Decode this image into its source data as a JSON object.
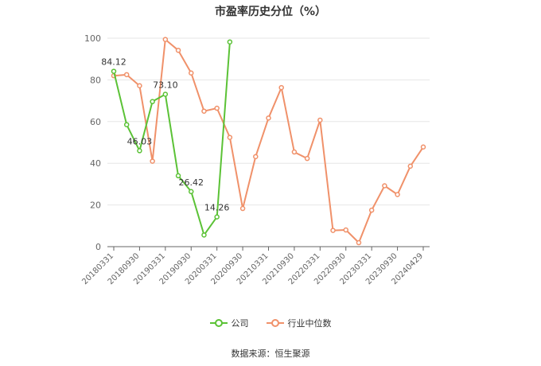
{
  "chart_data": {
    "type": "line",
    "title": "市盈率历史分位（%）",
    "x_tick_labels": [
      "20180331",
      "20180930",
      "20190331",
      "20190930",
      "20200331",
      "20200930",
      "20210331",
      "20210930",
      "20220331",
      "20220930",
      "20230331",
      "20230930",
      "20240429"
    ],
    "ylim": [
      0,
      100
    ],
    "y_ticks": [
      0,
      20,
      40,
      60,
      80,
      100
    ],
    "grid": true,
    "legend_position": "bottom",
    "series": [
      {
        "name": "公司",
        "color": "#5bc236",
        "values": [
          84.12,
          58.5,
          46.03,
          69.6,
          73.1,
          34.0,
          26.42,
          5.6,
          14.26,
          98.2
        ],
        "labels": [
          "84.12",
          "",
          "46.03",
          "",
          "73.10",
          "",
          "26.42",
          "",
          "14.26",
          ""
        ]
      },
      {
        "name": "行业中位数",
        "color": "#f0916a",
        "values": [
          82.0,
          82.5,
          77.2,
          41.0,
          99.4,
          94.2,
          83.3,
          65.0,
          66.4,
          52.4,
          18.3,
          43.2,
          61.7,
          76.3,
          45.4,
          42.3,
          60.7,
          7.8,
          8.0,
          1.9,
          17.5,
          29.2,
          25.0,
          38.6,
          47.8
        ]
      }
    ]
  },
  "footer": {
    "source": "数据来源：恒生聚源"
  }
}
